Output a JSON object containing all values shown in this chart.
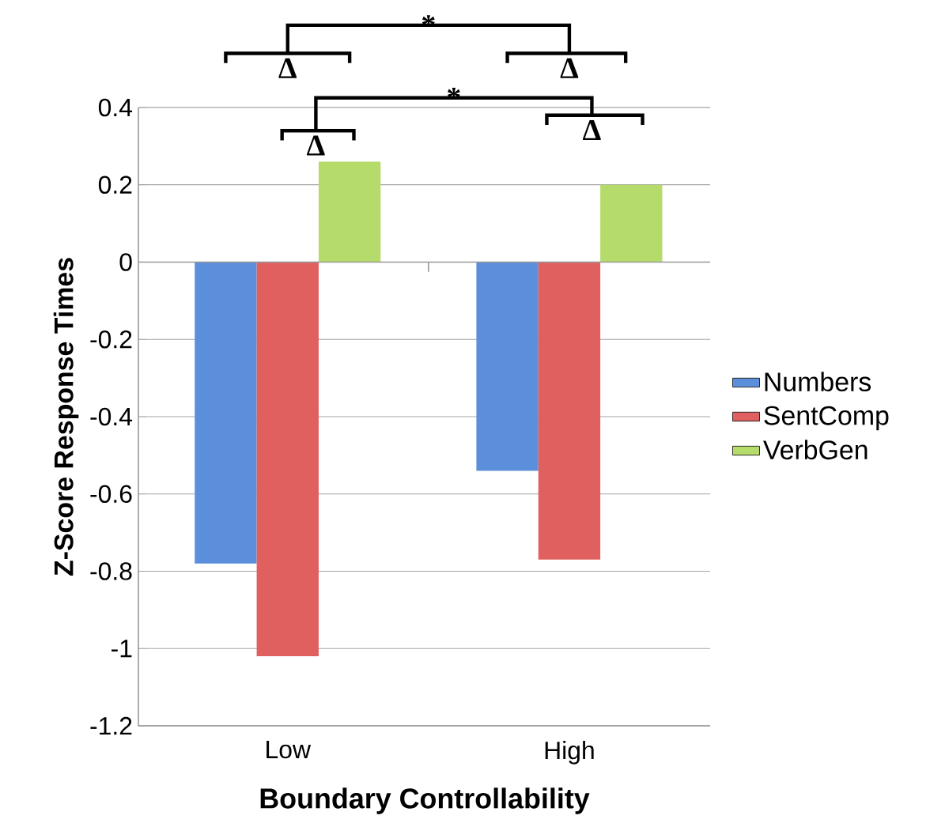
{
  "chart_data": {
    "type": "bar",
    "xlabel": "Boundary Controllability",
    "ylabel": "Z-Score Response Times",
    "categories": [
      "Low",
      "High"
    ],
    "series": [
      {
        "name": "Numbers",
        "color": "#5b8fdc",
        "values": [
          -0.78,
          -0.54
        ]
      },
      {
        "name": "SentComp",
        "color": "#e06060",
        "values": [
          -1.02,
          -0.77
        ]
      },
      {
        "name": "VerbGen",
        "color": "#b5dc6a",
        "values": [
          0.26,
          0.2
        ]
      }
    ],
    "ylim": [
      -1.2,
      0.4
    ],
    "yticks": [
      -1.2,
      -1,
      -0.8,
      -0.6,
      -0.4,
      -0.2,
      0,
      0.2,
      0.4
    ],
    "grid": "y",
    "legend": "right",
    "annotations": [
      "*",
      "*",
      "Δ",
      "Δ",
      "Δ",
      "Δ"
    ]
  }
}
